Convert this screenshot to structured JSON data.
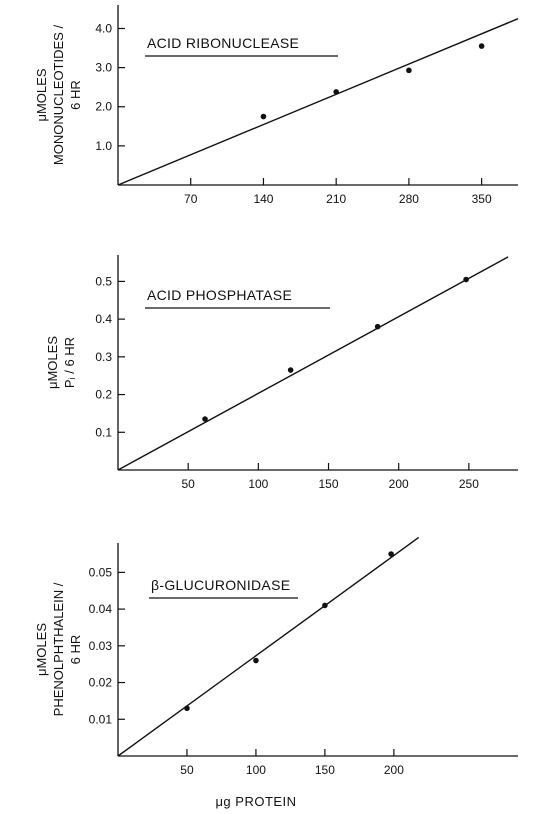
{
  "chart_data": [
    {
      "type": "scatter",
      "title": "ACID RIBONUCLEASE",
      "ylabel_lines": [
        "μMOLES",
        "MONONUCLEOTIDES /",
        "6 HR"
      ],
      "x_ticks": [
        70,
        140,
        210,
        280,
        350
      ],
      "y_ticks": [
        1.0,
        2.0,
        3.0,
        4.0
      ],
      "y_tick_labels": [
        "1.0",
        "2.0",
        "3.0",
        "4.0"
      ],
      "xlim": [
        0,
        385
      ],
      "ylim": [
        0,
        4.6
      ],
      "points": [
        {
          "x": 140,
          "y": 1.75
        },
        {
          "x": 210,
          "y": 2.38
        },
        {
          "x": 280,
          "y": 2.93
        },
        {
          "x": 350,
          "y": 3.55
        }
      ],
      "fit_line": [
        [
          0,
          0
        ],
        [
          385,
          4.25
        ]
      ]
    },
    {
      "type": "scatter",
      "title": "ACID PHOSPHATASE",
      "ylabel_lines": [
        "μMOLES",
        "Pᵢ / 6 HR"
      ],
      "x_ticks": [
        50,
        100,
        150,
        200,
        250
      ],
      "y_ticks": [
        0.1,
        0.2,
        0.3,
        0.4,
        0.5
      ],
      "y_tick_labels": [
        "0.1",
        "0.2",
        "0.3",
        "0.4",
        "0.5"
      ],
      "xlim": [
        0,
        285
      ],
      "ylim": [
        0,
        0.57
      ],
      "points": [
        {
          "x": 62,
          "y": 0.135
        },
        {
          "x": 123,
          "y": 0.265
        },
        {
          "x": 185,
          "y": 0.38
        },
        {
          "x": 248,
          "y": 0.505
        }
      ],
      "fit_line": [
        [
          0,
          0
        ],
        [
          278,
          0.565
        ]
      ]
    },
    {
      "type": "scatter",
      "title": "β-GLUCURONIDASE",
      "xlabel": "μg PROTEIN",
      "ylabel_lines": [
        "μMOLES",
        "PHENOLPHTHALEIN /",
        "6 HR"
      ],
      "x_ticks": [
        50,
        100,
        150,
        200
      ],
      "y_ticks": [
        0.01,
        0.02,
        0.03,
        0.04,
        0.05
      ],
      "y_tick_labels": [
        "0.01",
        "0.02",
        "0.03",
        "0.04",
        "0.05"
      ],
      "xlim": [
        0,
        290
      ],
      "ylim": [
        0,
        0.058
      ],
      "points": [
        {
          "x": 50,
          "y": 0.013
        },
        {
          "x": 100,
          "y": 0.026
        },
        {
          "x": 150,
          "y": 0.041
        },
        {
          "x": 198,
          "y": 0.055
        }
      ],
      "fit_line": [
        [
          0,
          0
        ],
        [
          218,
          0.0595
        ]
      ]
    }
  ]
}
